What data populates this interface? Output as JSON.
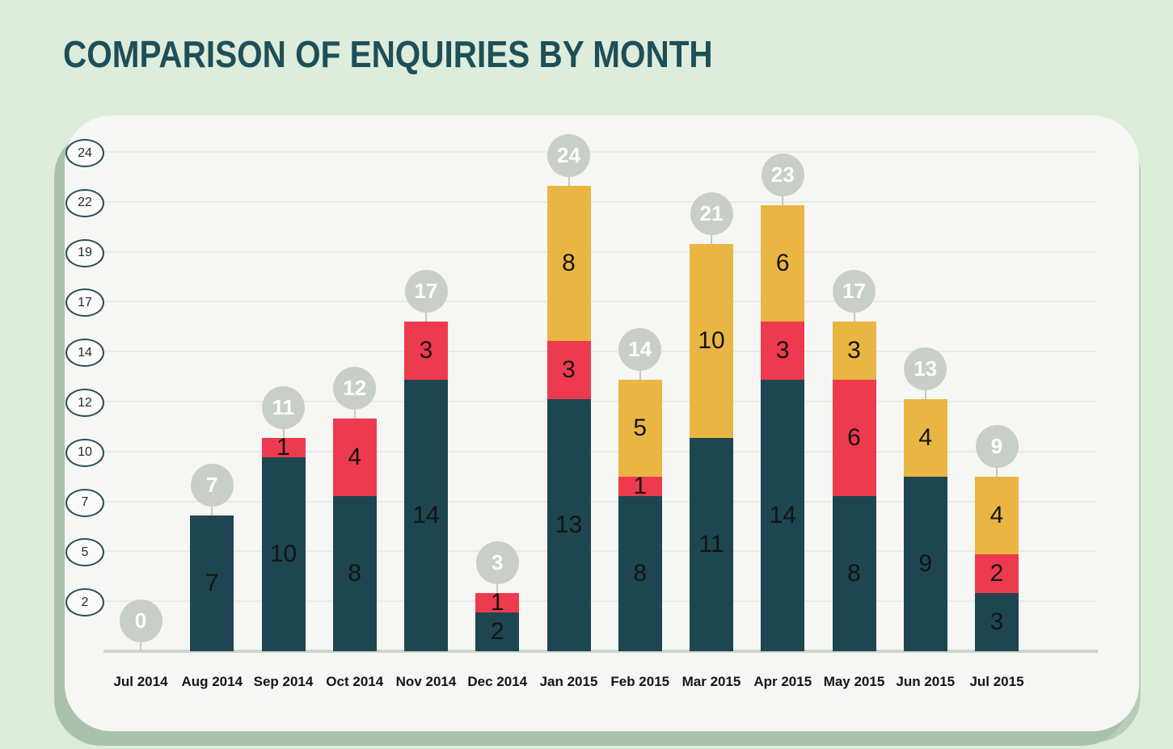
{
  "title": "COMPARISON OF ENQUIRIES BY MONTH",
  "colors": {
    "background": "#ddecdb",
    "card": "#f6f7f5",
    "title_text": "#1d4f58",
    "segment_teal": "#1d4650",
    "segment_red": "#ee3a4e",
    "segment_yellow": "#e9b644",
    "total_badge": "#c8cfc7",
    "total_badge_text": "#ffffff",
    "gridline": "#e7ebe5",
    "axis_baseline": "#c9d7c7",
    "tick_border": "#2a4d55"
  },
  "chart_data": {
    "type": "bar",
    "variant": "stacked",
    "title": "COMPARISON OF ENQUIRIES BY MONTH",
    "xlabel": "",
    "ylabel": "",
    "legend": "none",
    "grid": true,
    "y_ticks": [
      24,
      22,
      19,
      17,
      14,
      12,
      10,
      7,
      5,
      2
    ],
    "categories": [
      "Jul 2014",
      "Aug 2014",
      "Sep 2014",
      "Oct 2014",
      "Nov 2014",
      "Dec 2014",
      "Jan 2015",
      "Feb 2015",
      "Mar 2015",
      "Apr 2015",
      "May 2015",
      "Jun 2015",
      "Jul 2015"
    ],
    "series": [
      {
        "name": "segment-dark-teal",
        "color": "#1d4650",
        "values": [
          0,
          7,
          10,
          8,
          14,
          2,
          13,
          8,
          11,
          14,
          8,
          9,
          3
        ]
      },
      {
        "name": "segment-red",
        "color": "#ee3a4e",
        "values": [
          0,
          0,
          1,
          4,
          3,
          1,
          3,
          1,
          0,
          3,
          6,
          0,
          2
        ]
      },
      {
        "name": "segment-yellow",
        "color": "#e9b644",
        "values": [
          0,
          0,
          0,
          0,
          0,
          0,
          8,
          5,
          10,
          6,
          3,
          4,
          4
        ]
      }
    ],
    "totals": [
      0,
      7,
      11,
      12,
      17,
      3,
      24,
      14,
      21,
      23,
      17,
      13,
      9
    ]
  }
}
